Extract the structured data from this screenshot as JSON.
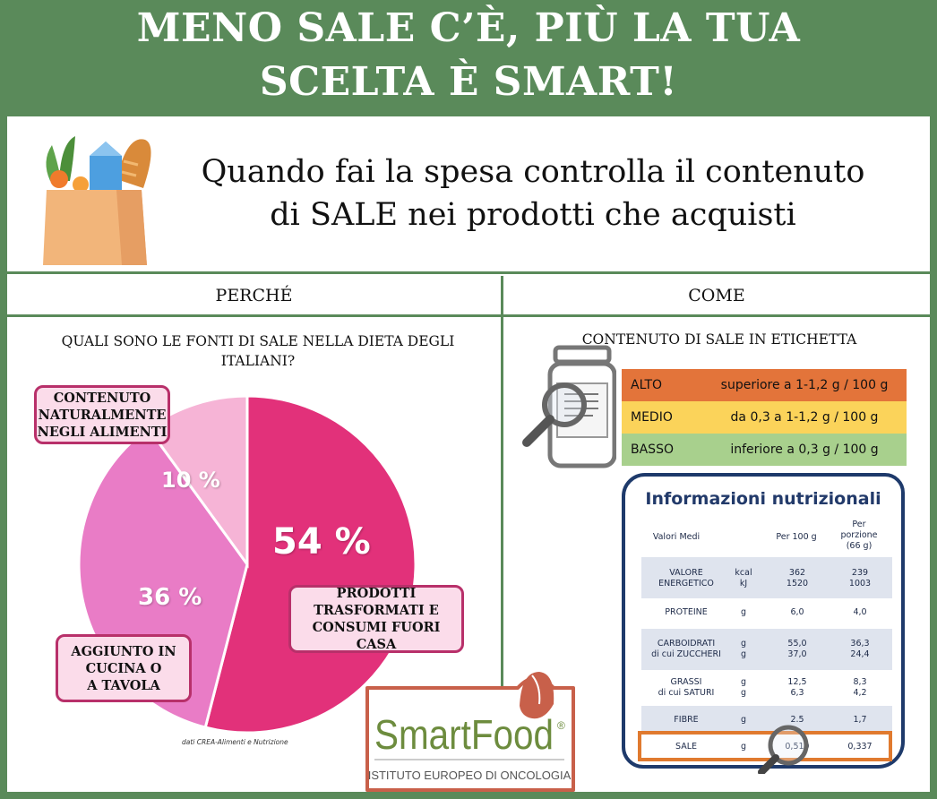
{
  "header": {
    "line1": "MENO SALE C’È, PIÙ LA TUA",
    "line2": "SCELTA È SMART!"
  },
  "subtitle": {
    "line1": "Quando fai la spesa controlla il contenuto",
    "line2": "di SALE nei prodotti che acquisti"
  },
  "columns": {
    "left": "PERCHÉ",
    "right": "COME"
  },
  "why": {
    "question_line1": "QUALI SONO LE FONTI DI SALE NELLA DIETA DEGLI",
    "question_line2": "ITALIANI?",
    "slices": [
      {
        "label_lines": [
          "PRODOTTI",
          "TRASFORMATI E",
          "CONSUMI FUORI CASA"
        ],
        "percent": 54,
        "display": "54 %",
        "color": "#e2317a"
      },
      {
        "label_lines": [
          "AGGIUNTO IN",
          "CUCINA O",
          "A TAVOLA"
        ],
        "percent": 36,
        "display": "36 %",
        "color": "#e97cc6"
      },
      {
        "label_lines": [
          "CONTENUTO",
          "NATURALMENTE",
          "NEGLI ALIMENTI"
        ],
        "percent": 10,
        "display": "10 %",
        "color": "#f6b4d6"
      }
    ],
    "source": "dati CREA-Alimenti e Nutrizione"
  },
  "how": {
    "title": "CONTENUTO DI SALE IN ETICHETTA",
    "levels": [
      {
        "name": "ALTO",
        "desc": "superiore a 1-1,2 g / 100 g",
        "color": "#e3743a"
      },
      {
        "name": "MEDIO",
        "desc": "da 0,3 a 1-1,2 g / 100 g",
        "color": "#fbd35a"
      },
      {
        "name": "BASSO",
        "desc": "inferiore a 0,3 g / 100 g",
        "color": "#a8d08d"
      }
    ],
    "nutrition": {
      "title": "Informazioni nutrizionali",
      "col_label": "Valori Medi",
      "col_100g": "Per 100 g",
      "col_portion_l1": "Per",
      "col_portion_l2": "porzione",
      "col_portion_l3": "(66 g)",
      "rows": [
        {
          "name_l1": "VALORE",
          "name_l2": "ENERGETICO",
          "unit_l1": "kcal",
          "unit_l2": "kJ",
          "v100_l1": "362",
          "v100_l2": "1520",
          "vp_l1": "239",
          "vp_l2": "1003"
        },
        {
          "name_l1": "PROTEINE",
          "name_l2": "",
          "unit_l1": "g",
          "unit_l2": "",
          "v100_l1": "6,0",
          "v100_l2": "",
          "vp_l1": "4,0",
          "vp_l2": ""
        },
        {
          "name_l1": "CARBOIDRATI",
          "name_l2": "di cui ZUCCHERI",
          "unit_l1": "g",
          "unit_l2": "g",
          "v100_l1": "55,0",
          "v100_l2": "37,0",
          "vp_l1": "36,3",
          "vp_l2": "24,4"
        },
        {
          "name_l1": "GRASSI",
          "name_l2": "di cui SATURI",
          "unit_l1": "g",
          "unit_l2": "g",
          "v100_l1": "12,5",
          "v100_l2": "6,3",
          "vp_l1": "8,3",
          "vp_l2": "4,2"
        },
        {
          "name_l1": "FIBRE",
          "name_l2": "",
          "unit_l1": "g",
          "unit_l2": "",
          "v100_l1": "2.5",
          "v100_l2": "",
          "vp_l1": "1,7",
          "vp_l2": ""
        },
        {
          "name_l1": "SALE",
          "name_l2": "",
          "unit_l1": "g",
          "unit_l2": "",
          "v100_l1": "0,510",
          "v100_l2": "",
          "vp_l1": "0,337",
          "vp_l2": ""
        }
      ]
    }
  },
  "logo": {
    "brand": "SmartFood",
    "registered": "®",
    "institute": "ISTITUTO EUROPEO DI ONCOLOGIA",
    "accent": "#6d8c3e",
    "icon_color": "#c8604a"
  },
  "icons": {
    "grocery": "grocery-bag-icon",
    "jar": "jar-label-magnifier-icon",
    "magnifier": "magnifier-icon"
  }
}
